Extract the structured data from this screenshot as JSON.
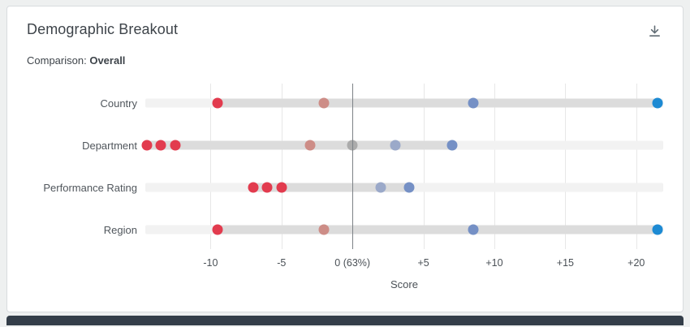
{
  "card": {
    "title": "Demographic Breakout",
    "comparison_label": "Comparison:",
    "comparison_value": "Overall"
  },
  "chart_data": {
    "type": "scatter",
    "variant": "dot-plot",
    "title": "Demographic Breakout",
    "xlabel": "Score",
    "x_domain": [
      -14.6,
      21.9
    ],
    "grid": true,
    "legend": "none",
    "x_ticks": [
      {
        "value": -10,
        "label": "-10"
      },
      {
        "value": -5,
        "label": "-5"
      },
      {
        "value": 0,
        "label": "0 (63%)"
      },
      {
        "value": 5,
        "label": "+5"
      },
      {
        "value": 10,
        "label": "+10"
      },
      {
        "value": 15,
        "label": "+15"
      },
      {
        "value": 20,
        "label": "+20"
      }
    ],
    "baseline": {
      "value": 0,
      "overall_score_label": "0 (63%)",
      "percent": "63%"
    },
    "palette": {
      "neg_strong": "#e23b4e",
      "neg_muted": "#cd8d87",
      "neutral": "#ababab",
      "pos_muted": "#9ba9c9",
      "pos_medium": "#7590c5",
      "pos_strong": "#1d8ad3"
    },
    "rows": [
      {
        "category": "Country",
        "range": [
          -9.5,
          21.5
        ],
        "points": [
          {
            "value": -9.5,
            "color": "neg_strong"
          },
          {
            "value": -2,
            "color": "neg_muted"
          },
          {
            "value": 8.5,
            "color": "pos_medium"
          },
          {
            "value": 21.5,
            "color": "pos_strong"
          }
        ]
      },
      {
        "category": "Department",
        "range": [
          -14.5,
          7
        ],
        "points": [
          {
            "value": -14.5,
            "color": "neg_strong"
          },
          {
            "value": -13.5,
            "color": "neg_strong"
          },
          {
            "value": -12.5,
            "color": "neg_strong"
          },
          {
            "value": -3,
            "color": "neg_muted"
          },
          {
            "value": 0,
            "color": "neutral"
          },
          {
            "value": 3,
            "color": "pos_muted"
          },
          {
            "value": 7,
            "color": "pos_medium"
          }
        ]
      },
      {
        "category": "Performance Rating",
        "range": [
          -7,
          4
        ],
        "points": [
          {
            "value": -7,
            "color": "neg_strong"
          },
          {
            "value": -6,
            "color": "neg_strong"
          },
          {
            "value": -5,
            "color": "neg_strong"
          },
          {
            "value": 2,
            "color": "pos_muted"
          },
          {
            "value": 4,
            "color": "pos_medium"
          }
        ]
      },
      {
        "category": "Region",
        "range": [
          -9.5,
          21.5
        ],
        "points": [
          {
            "value": -9.5,
            "color": "neg_strong"
          },
          {
            "value": -2,
            "color": "neg_muted"
          },
          {
            "value": 8.5,
            "color": "pos_medium"
          },
          {
            "value": 21.5,
            "color": "pos_strong"
          }
        ]
      }
    ]
  }
}
